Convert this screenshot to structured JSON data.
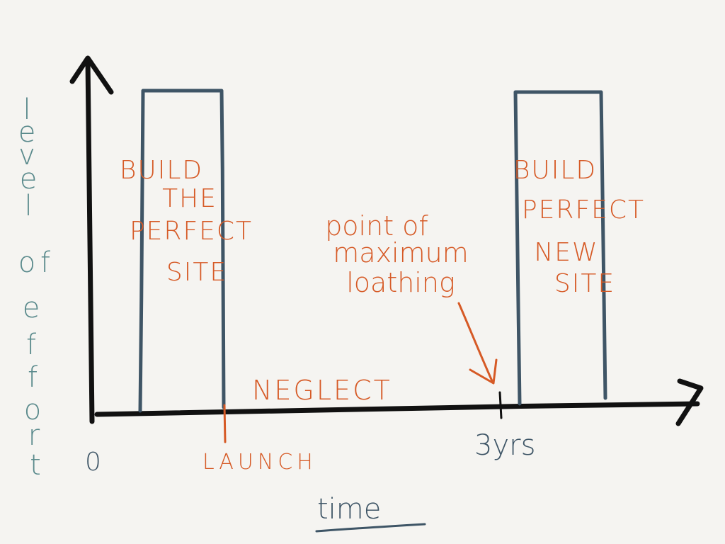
{
  "axes": {
    "y_label_letters": [
      "l",
      "e",
      "v",
      "e",
      "l",
      "o",
      "f",
      "e",
      "f",
      "f",
      "o",
      "r",
      "t"
    ],
    "x_label": "time",
    "origin_label": "0"
  },
  "bars": [
    {
      "name": "build-bar",
      "lines": [
        "BUILD",
        "THE",
        "PERFECT",
        "SITE"
      ]
    },
    {
      "name": "rebuild-bar",
      "lines": [
        "BUILD",
        "PERFECT",
        "NEW",
        "SITE"
      ]
    }
  ],
  "labels": {
    "launch": "LAUNCH",
    "three_years": "3yrs",
    "neglect": "NEGLECT",
    "max_loathing": [
      "point of",
      "maximum",
      "loathing"
    ]
  },
  "colors": {
    "axis": "#111111",
    "bars": "#3f5566",
    "annotation": "#d65a26",
    "axis_label": "#5a8a8c",
    "background": "#f5f4f1"
  }
}
